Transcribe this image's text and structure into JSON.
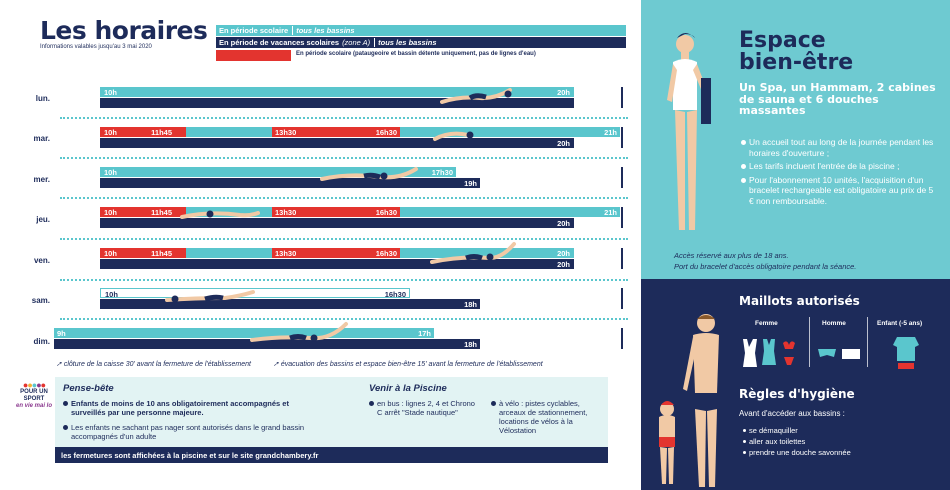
{
  "header": {
    "title": "Les horaires",
    "subtitle": "Informations valables jusqu'au 3 mai 2020"
  },
  "legend": {
    "school_period": "En période scolaire",
    "school_period_detail": "tous les bassins",
    "holidays": "En période de vacances scolaires",
    "holidays_zone": "(zone A)",
    "holidays_detail": "tous les bassins",
    "school_restricted": "En période scolaire (pataugeoire et bassin détente uniquement, pas de lignes d'eau)"
  },
  "colors": {
    "teal": "#5ac6cd",
    "navy": "#1d2b5a",
    "red": "#e3342f",
    "light_teal_bg": "#e2f3f3",
    "spa_bg": "#6ecad1"
  },
  "schedule": {
    "days": [
      {
        "day": "lun.",
        "teal": {
          "open": "10h",
          "close": "20h"
        }
      },
      {
        "day": "mar.",
        "red": {
          "open": "10h",
          "mid1": "11h45",
          "mid2": "13h30",
          "mid3": "16h30",
          "close": "21h"
        },
        "navy": {
          "close": "20h"
        }
      },
      {
        "day": "mer.",
        "teal": {
          "open": "10h",
          "close": "17h30"
        },
        "navy": {
          "close": "19h"
        }
      },
      {
        "day": "jeu.",
        "red": {
          "open": "10h",
          "mid1": "11h45",
          "mid2": "13h30",
          "mid3": "16h30",
          "close": "21h"
        },
        "navy": {
          "close": "20h"
        }
      },
      {
        "day": "ven.",
        "red": {
          "open": "10h",
          "mid1": "11h45",
          "mid2": "13h30",
          "mid3": "16h30",
          "close": "20h"
        },
        "navy": {
          "close": "20h"
        }
      },
      {
        "day": "sam.",
        "teal": {
          "open": "10h",
          "close": "16h30"
        },
        "navy": {
          "close": "18h"
        }
      },
      {
        "day": "dim.",
        "teal": {
          "open": "9h",
          "close": "17h"
        },
        "navy": {
          "close": "18h"
        }
      }
    ]
  },
  "footnotes": {
    "note1": "clôture de la caisse 30' avant la fermeture de l'établissement",
    "note2": "évacuation des bassins et espace bien-être 15' avant la fermeture de l'établissement"
  },
  "pense_bete": {
    "title": "Pense-bête",
    "items": [
      "Enfants de moins de 10 ans obligatoirement accompagnés et surveillés par une personne majeure.",
      "Les enfants ne sachant pas nager sont autorisés dans le grand bassin accompagnés d'un adulte"
    ]
  },
  "venir": {
    "title": "Venir à la Piscine",
    "bus": "en bus : lignes 2, 4 et Chrono C arrêt \"Stade nautique\"",
    "velo": "à vélo : pistes cyclables, arceaux de stationnement, locations de vélos à la Vélostation"
  },
  "bottom_bar": "les fermetures sont affichées à la piscine et sur le site grandchambery.fr",
  "logo": {
    "line1": "POUR UN SPORT",
    "line2": "en vie mai lo"
  },
  "spa": {
    "title_line1": "Espace",
    "title_line2": "bien-être",
    "subtitle": "Un Spa, un Hammam, 2 cabines de sauna et 6 douches massantes",
    "bullets": [
      "Un accueil tout au long de la journée pendant les horaires d'ouverture ;",
      "Les tarifs incluent l'entrée de la piscine ;",
      "Pour l'abonnement 10 unités, l'acquisition d'un bracelet rechargeable est obligatoire au prix de 5 € non remboursable."
    ],
    "note1": "Accès réservé aux plus de 18 ans.",
    "note2": "Port du bracelet d'accès obligatoire pendant la séance."
  },
  "maillots": {
    "title": "Maillots autorisés",
    "femme": "Femme",
    "homme": "Homme",
    "enfant": "Enfant (-5 ans)"
  },
  "hygiene": {
    "title": "Règles d'hygiène",
    "intro": "Avant d'accéder aux bassins :",
    "items": [
      "se démaquiller",
      "aller aux toilettes",
      "prendre une douche savonnée"
    ]
  }
}
